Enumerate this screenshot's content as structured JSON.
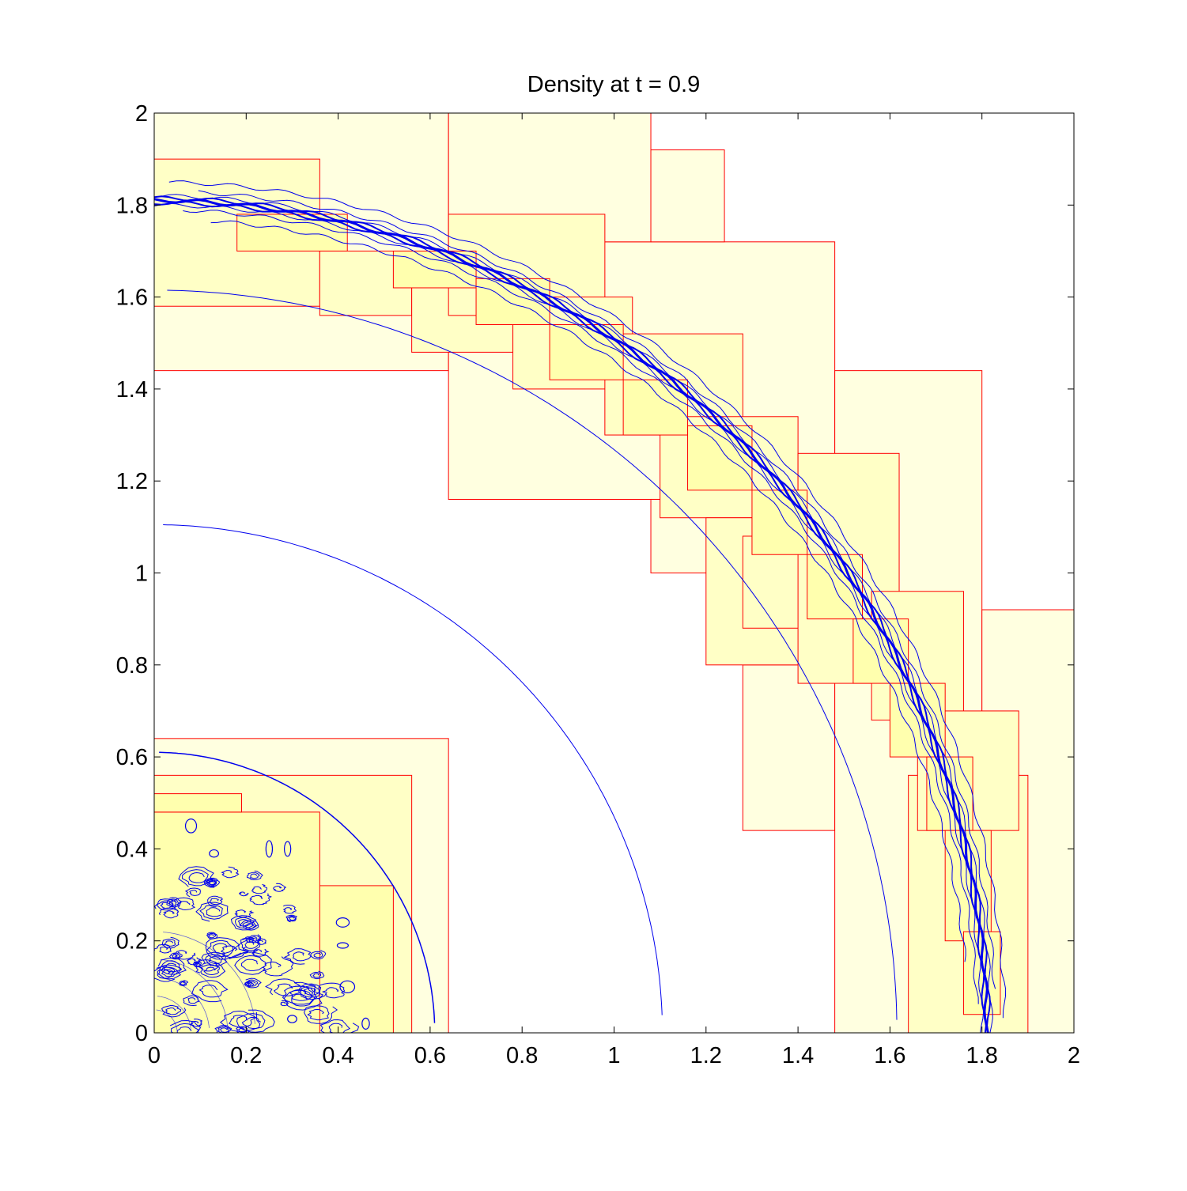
{
  "chart_data": {
    "type": "line",
    "title": "Density at t = 0.9",
    "xlabel": "",
    "ylabel": "",
    "xlim": [
      0,
      2
    ],
    "ylim": [
      0,
      2
    ],
    "xticks": [
      "0",
      "0.2",
      "0.4",
      "0.6",
      "0.8",
      "1",
      "1.2",
      "1.4",
      "1.6",
      "1.8",
      "2"
    ],
    "yticks": [
      "0",
      "0.2",
      "0.4",
      "0.6",
      "0.8",
      "1",
      "1.2",
      "1.4",
      "1.6",
      "1.8",
      "2"
    ],
    "grid": false,
    "legend": "none",
    "colors": {
      "contour": "#0000ee",
      "patch_edge": "#ff0000",
      "patch_fill_level1": "#ffffe0",
      "patch_fill_level2": "#ffffc6",
      "patch_fill_level3": "#ffffae",
      "axes": "#000000",
      "background": "#ffffff"
    },
    "refinement_patches": [
      {
        "x0": 0.0,
        "y0": 1.44,
        "x1": 0.64,
        "y1": 2.0,
        "level": 1
      },
      {
        "x0": 0.64,
        "y0": 1.16,
        "x1": 1.48,
        "y1": 1.72,
        "level": 1
      },
      {
        "x0": 0.64,
        "y0": 1.72,
        "x1": 1.08,
        "y1": 2.0,
        "level": 1
      },
      {
        "x0": 1.08,
        "y0": 1.72,
        "x1": 1.24,
        "y1": 1.92,
        "level": 1
      },
      {
        "x0": 1.08,
        "y0": 1.0,
        "x1": 1.28,
        "y1": 1.16,
        "level": 1
      },
      {
        "x0": 1.28,
        "y0": 0.44,
        "x1": 1.48,
        "y1": 0.8,
        "level": 1
      },
      {
        "x0": 1.48,
        "y0": 0.0,
        "x1": 1.8,
        "y1": 1.44,
        "level": 1
      },
      {
        "x0": 1.8,
        "y0": 0.0,
        "x1": 2.0,
        "y1": 0.92,
        "level": 1
      },
      {
        "x0": 0.0,
        "y0": 0.0,
        "x1": 0.64,
        "y1": 0.64,
        "level": 1
      },
      {
        "x0": 0.0,
        "y0": 1.58,
        "x1": 0.36,
        "y1": 1.9,
        "level": 2
      },
      {
        "x0": 0.36,
        "y0": 1.56,
        "x1": 0.56,
        "y1": 1.7,
        "level": 2
      },
      {
        "x0": 0.56,
        "y0": 1.48,
        "x1": 0.78,
        "y1": 1.66,
        "level": 2
      },
      {
        "x0": 0.64,
        "y0": 1.56,
        "x1": 0.98,
        "y1": 1.78,
        "level": 2
      },
      {
        "x0": 0.78,
        "y0": 1.4,
        "x1": 1.04,
        "y1": 1.6,
        "level": 2
      },
      {
        "x0": 0.98,
        "y0": 1.3,
        "x1": 1.28,
        "y1": 1.52,
        "level": 2
      },
      {
        "x0": 1.1,
        "y0": 1.12,
        "x1": 1.4,
        "y1": 1.34,
        "level": 2
      },
      {
        "x0": 1.2,
        "y0": 0.8,
        "x1": 1.48,
        "y1": 1.12,
        "level": 2
      },
      {
        "x0": 1.28,
        "y0": 0.88,
        "x1": 1.5,
        "y1": 1.08,
        "level": 2
      },
      {
        "x0": 1.4,
        "y0": 0.76,
        "x1": 1.62,
        "y1": 1.26,
        "level": 2
      },
      {
        "x0": 1.56,
        "y0": 0.68,
        "x1": 1.76,
        "y1": 0.96,
        "level": 2
      },
      {
        "x0": 1.64,
        "y0": 0.0,
        "x1": 1.9,
        "y1": 0.56,
        "level": 2
      },
      {
        "x0": 1.66,
        "y0": 0.44,
        "x1": 1.88,
        "y1": 0.7,
        "level": 2
      },
      {
        "x0": 0.0,
        "y0": 0.0,
        "x1": 0.56,
        "y1": 0.56,
        "level": 2
      },
      {
        "x0": 0.0,
        "y0": 0.0,
        "x1": 0.52,
        "y1": 0.32,
        "level": 3
      },
      {
        "x0": 0.0,
        "y0": 0.0,
        "x1": 0.36,
        "y1": 0.48,
        "level": 3
      },
      {
        "x0": 0.0,
        "y0": 0.48,
        "x1": 0.19,
        "y1": 0.52,
        "level": 3
      },
      {
        "x0": 0.18,
        "y0": 1.7,
        "x1": 0.42,
        "y1": 1.78,
        "level": 3
      },
      {
        "x0": 0.52,
        "y0": 1.62,
        "x1": 0.7,
        "y1": 1.7,
        "level": 3
      },
      {
        "x0": 0.7,
        "y0": 1.54,
        "x1": 0.86,
        "y1": 1.64,
        "level": 3
      },
      {
        "x0": 0.86,
        "y0": 1.42,
        "x1": 1.02,
        "y1": 1.54,
        "level": 3
      },
      {
        "x0": 1.02,
        "y0": 1.3,
        "x1": 1.16,
        "y1": 1.42,
        "level": 3
      },
      {
        "x0": 1.16,
        "y0": 1.18,
        "x1": 1.3,
        "y1": 1.32,
        "level": 3
      },
      {
        "x0": 1.3,
        "y0": 1.04,
        "x1": 1.42,
        "y1": 1.18,
        "level": 3
      },
      {
        "x0": 1.42,
        "y0": 0.9,
        "x1": 1.54,
        "y1": 1.04,
        "level": 3
      },
      {
        "x0": 1.52,
        "y0": 0.76,
        "x1": 1.64,
        "y1": 0.9,
        "level": 3
      },
      {
        "x0": 1.6,
        "y0": 0.6,
        "x1": 1.72,
        "y1": 0.76,
        "level": 3
      },
      {
        "x0": 1.68,
        "y0": 0.44,
        "x1": 1.78,
        "y1": 0.6,
        "level": 3
      },
      {
        "x0": 1.72,
        "y0": 0.2,
        "x1": 1.82,
        "y1": 0.44,
        "level": 3
      },
      {
        "x0": 1.76,
        "y0": 0.04,
        "x1": 1.84,
        "y1": 0.22,
        "level": 3
      }
    ],
    "contours": [
      {
        "name": "",
        "kind": "arc",
        "radius": 1.105,
        "theta0": 2,
        "theta1": 89,
        "width": 1
      },
      {
        "name": "",
        "kind": "arc",
        "radius": 1.615,
        "theta0": 1,
        "theta1": 89,
        "width": 1
      },
      {
        "name": "",
        "kind": "arc",
        "radius": 0.61,
        "theta0": 2,
        "theta1": 89,
        "width": 1.5
      },
      {
        "name": "",
        "kind": "arc",
        "radius": 1.8,
        "theta0": 0,
        "theta1": 90,
        "width": 1
      },
      {
        "name": "",
        "kind": "arc",
        "radius": 1.805,
        "theta0": 0,
        "theta1": 90,
        "width": 2
      },
      {
        "name": "",
        "kind": "arc",
        "radius": 1.81,
        "theta0": 0,
        "theta1": 90,
        "width": 3
      },
      {
        "name": "",
        "kind": "arc",
        "radius": 1.815,
        "theta0": 0,
        "theta1": 90,
        "width": 2
      },
      {
        "name": "",
        "kind": "arc",
        "radius": 1.82,
        "theta0": 0,
        "theta1": 90,
        "width": 1
      },
      {
        "name": "",
        "kind": "arc",
        "radius": 1.79,
        "theta0": 2,
        "theta1": 88,
        "width": 1
      },
      {
        "name": "",
        "kind": "arc",
        "radius": 1.83,
        "theta0": 3,
        "theta1": 87,
        "width": 1
      },
      {
        "name": "",
        "kind": "arc",
        "radius": 1.85,
        "theta0": 1,
        "theta1": 89,
        "width": 1
      },
      {
        "name": "",
        "kind": "arc",
        "radius": 1.77,
        "theta0": 5,
        "theta1": 86,
        "width": 1
      }
    ],
    "blobs": [
      {
        "cx": 0.08,
        "cy": 0.45,
        "rx": 0.012,
        "ry": 0.015
      },
      {
        "cx": 0.13,
        "cy": 0.39,
        "rx": 0.01,
        "ry": 0.008
      },
      {
        "cx": 0.25,
        "cy": 0.4,
        "rx": 0.007,
        "ry": 0.018
      },
      {
        "cx": 0.29,
        "cy": 0.4,
        "rx": 0.007,
        "ry": 0.016
      },
      {
        "cx": 0.41,
        "cy": 0.24,
        "rx": 0.014,
        "ry": 0.01
      },
      {
        "cx": 0.41,
        "cy": 0.19,
        "rx": 0.012,
        "ry": 0.006
      },
      {
        "cx": 0.42,
        "cy": 0.1,
        "rx": 0.016,
        "ry": 0.013
      },
      {
        "cx": 0.3,
        "cy": 0.03,
        "rx": 0.01,
        "ry": 0.008
      },
      {
        "cx": 0.46,
        "cy": 0.02,
        "rx": 0.008,
        "ry": 0.012
      }
    ]
  }
}
